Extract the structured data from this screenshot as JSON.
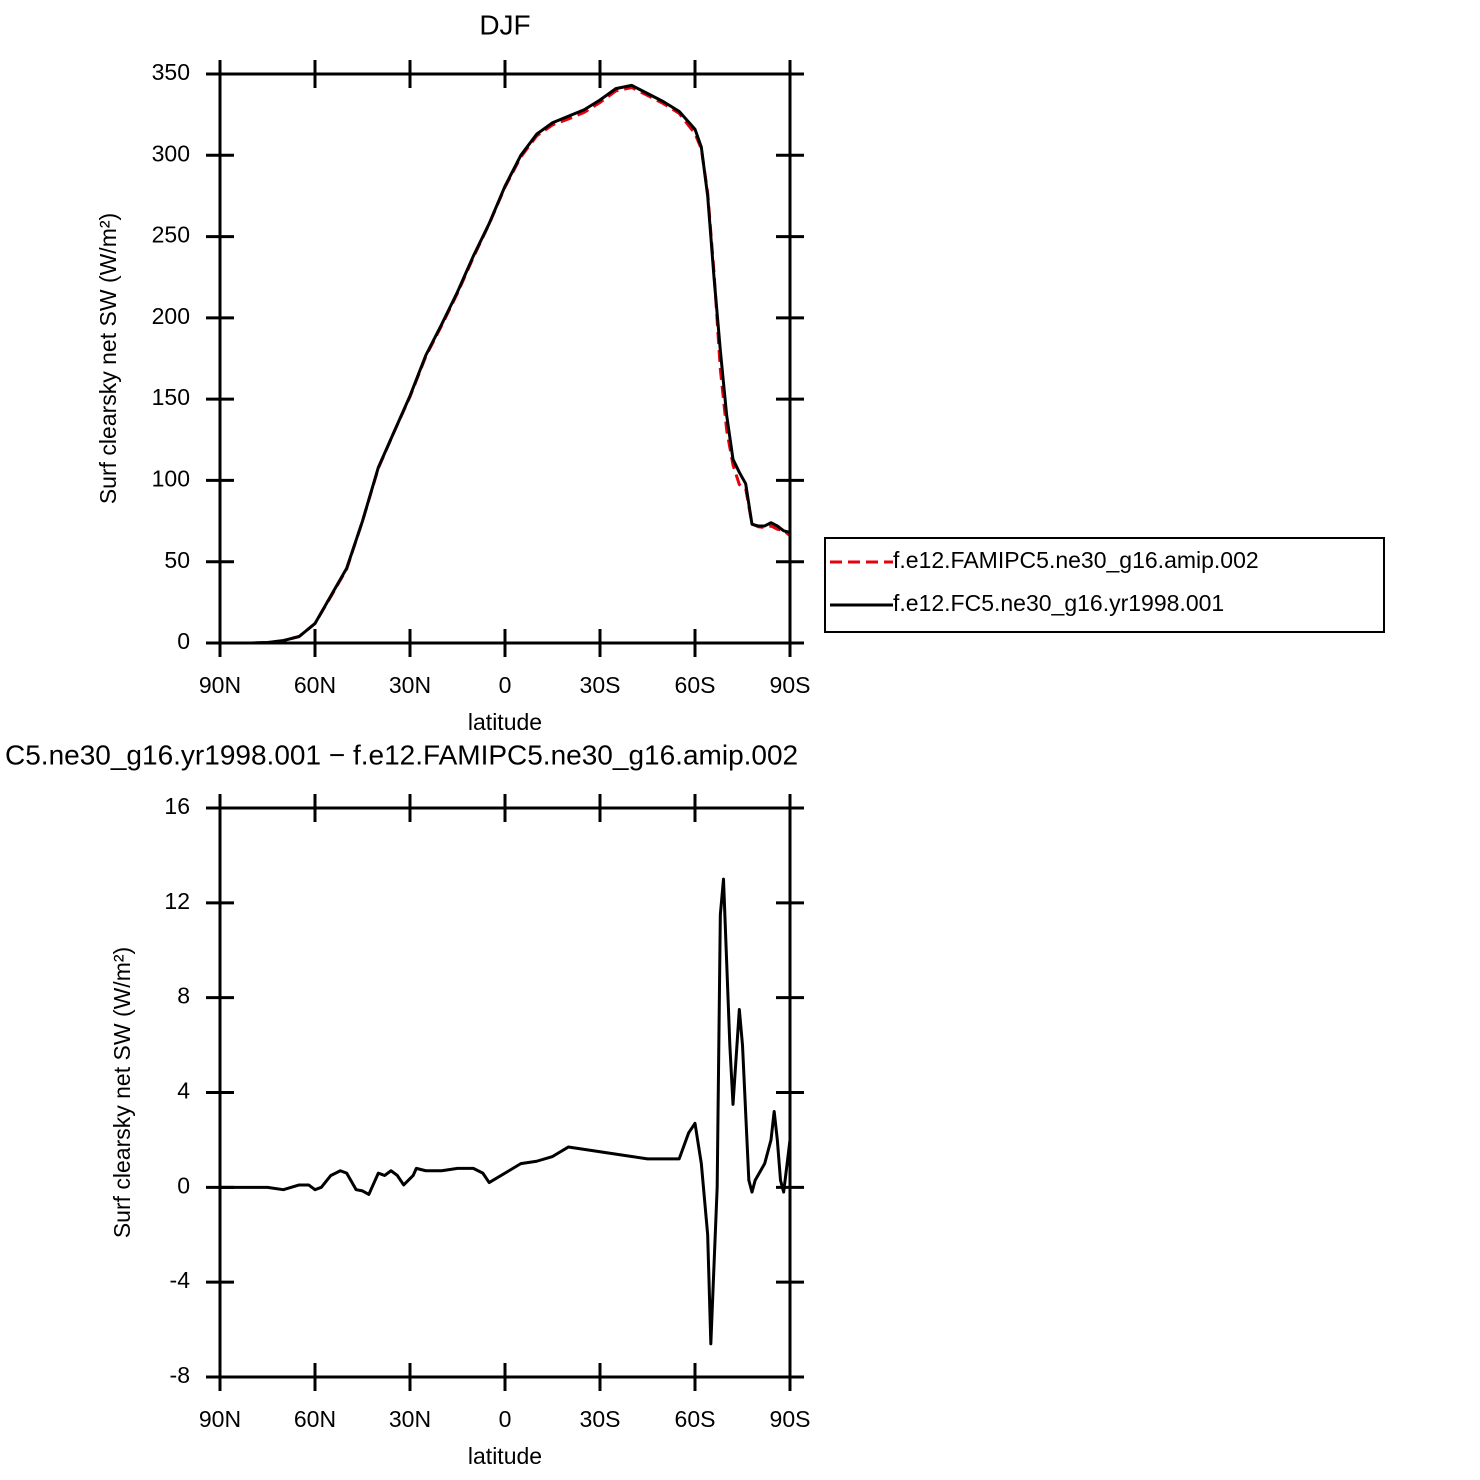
{
  "chart_data": [
    {
      "type": "line",
      "title": "DJF",
      "xlabel": "latitude",
      "ylabel": "Surf clearsky net SW (W/m²)",
      "x": [
        90,
        85,
        80,
        75,
        70,
        65,
        60,
        55,
        50,
        45,
        40,
        35,
        30,
        25,
        20,
        15,
        10,
        5,
        0,
        -5,
        -10,
        -15,
        -20,
        -25,
        -30,
        -35,
        -40,
        -45,
        -50,
        -55,
        -60,
        -62,
        -64,
        -66,
        -68,
        -70,
        -72,
        -74,
        -76,
        -78,
        -80,
        -82,
        -84,
        -86,
        -88,
        -90
      ],
      "series": [
        {
          "name": "f.e12.FAMIPC5.ne30_g16.amip.002",
          "color": "#e8000b",
          "linestyle": "dashed",
          "values": [
            0,
            0,
            0,
            0.3,
            1.5,
            4,
            12,
            28.5,
            45.5,
            75,
            107.5,
            130,
            151.5,
            176.3,
            195.3,
            215.2,
            237.2,
            257.8,
            280.4,
            299,
            311.9,
            318.7,
            322.3,
            326.4,
            332.5,
            339.6,
            341.7,
            336.8,
            331.8,
            325.8,
            313.3,
            304,
            277,
            228,
            168.5,
            131,
            109.5,
            97.5,
            95,
            73.2,
            71.5,
            71,
            72,
            70,
            69.2,
            66
          ]
        },
        {
          "name": "f.e12.FC5.ne30_g16.yr1998.001",
          "color": "#000000",
          "linestyle": "solid",
          "values": [
            0,
            0,
            0,
            0.3,
            1.5,
            4,
            12,
            29,
            46,
            75,
            108,
            130,
            152,
            177,
            196,
            216,
            238,
            258,
            281,
            300,
            313,
            320,
            324,
            328,
            334,
            341,
            343,
            338,
            333,
            327,
            316,
            305,
            275,
            225,
            180,
            140,
            113,
            105,
            98,
            73,
            72,
            72,
            74,
            72,
            69,
            68
          ]
        }
      ],
      "xlim": [
        90,
        -90
      ],
      "ylim": [
        0,
        350
      ],
      "xticks": [
        {
          "value": 90,
          "label": "90N"
        },
        {
          "value": 60,
          "label": "60N"
        },
        {
          "value": 30,
          "label": "30N"
        },
        0,
        {
          "value": -30,
          "label": "30S"
        },
        {
          "value": -60,
          "label": "60S"
        },
        {
          "value": -90,
          "label": "90S"
        }
      ],
      "yticks": [
        0,
        50,
        100,
        150,
        200,
        250,
        300,
        350
      ],
      "legend": "right"
    },
    {
      "type": "line",
      "title": "C5.ne30_g16.yr1998.001 − f.e12.FAMIPC5.ne30_g16.amip.002",
      "xlabel": "latitude",
      "ylabel": "Surf clearsky net SW (W/m²)",
      "x": [
        90,
        85,
        80,
        75,
        70,
        65,
        62,
        60,
        58,
        55,
        52,
        50,
        47,
        45,
        43,
        40,
        38,
        36,
        34,
        32,
        29,
        28,
        25,
        20,
        15,
        10,
        7,
        5,
        0,
        -5,
        -10,
        -15,
        -20,
        -25,
        -30,
        -35,
        -40,
        -45,
        -50,
        -55,
        -58,
        -60,
        -62,
        -64,
        -65,
        -67,
        -68,
        -69,
        -71,
        -72,
        -74,
        -75,
        -77,
        -78,
        -79,
        -82,
        -84,
        -85,
        -86,
        -87,
        -88,
        -90
      ],
      "series": [
        {
          "color": "#000000",
          "linestyle": "solid",
          "values": [
            0,
            0,
            0,
            0,
            -0.1,
            0.1,
            0.1,
            -0.1,
            0,
            0.5,
            0.7,
            0.6,
            -0.1,
            -0.15,
            -0.3,
            0.6,
            0.5,
            0.7,
            0.5,
            0.1,
            0.5,
            0.8,
            0.7,
            0.7,
            0.8,
            0.8,
            0.6,
            0.2,
            0.6,
            1.0,
            1.1,
            1.3,
            1.7,
            1.6,
            1.5,
            1.4,
            1.3,
            1.2,
            1.2,
            1.2,
            2.3,
            2.7,
            1.0,
            -2,
            -6.6,
            0,
            11.5,
            13,
            6,
            3.5,
            7.5,
            6,
            0.3,
            -0.2,
            0.3,
            1,
            2,
            3.2,
            2,
            0.3,
            -0.2,
            2
          ]
        }
      ],
      "xlim": [
        90,
        -90
      ],
      "ylim": [
        -8,
        16
      ],
      "xticks": [
        {
          "value": 90,
          "label": "90N"
        },
        {
          "value": 60,
          "label": "60N"
        },
        {
          "value": 30,
          "label": "30N"
        },
        0,
        {
          "value": -30,
          "label": "30S"
        },
        {
          "value": -60,
          "label": "60S"
        },
        {
          "value": -90,
          "label": "90S"
        }
      ],
      "yticks": [
        -8,
        -4,
        0,
        4,
        8,
        12,
        16
      ]
    }
  ]
}
